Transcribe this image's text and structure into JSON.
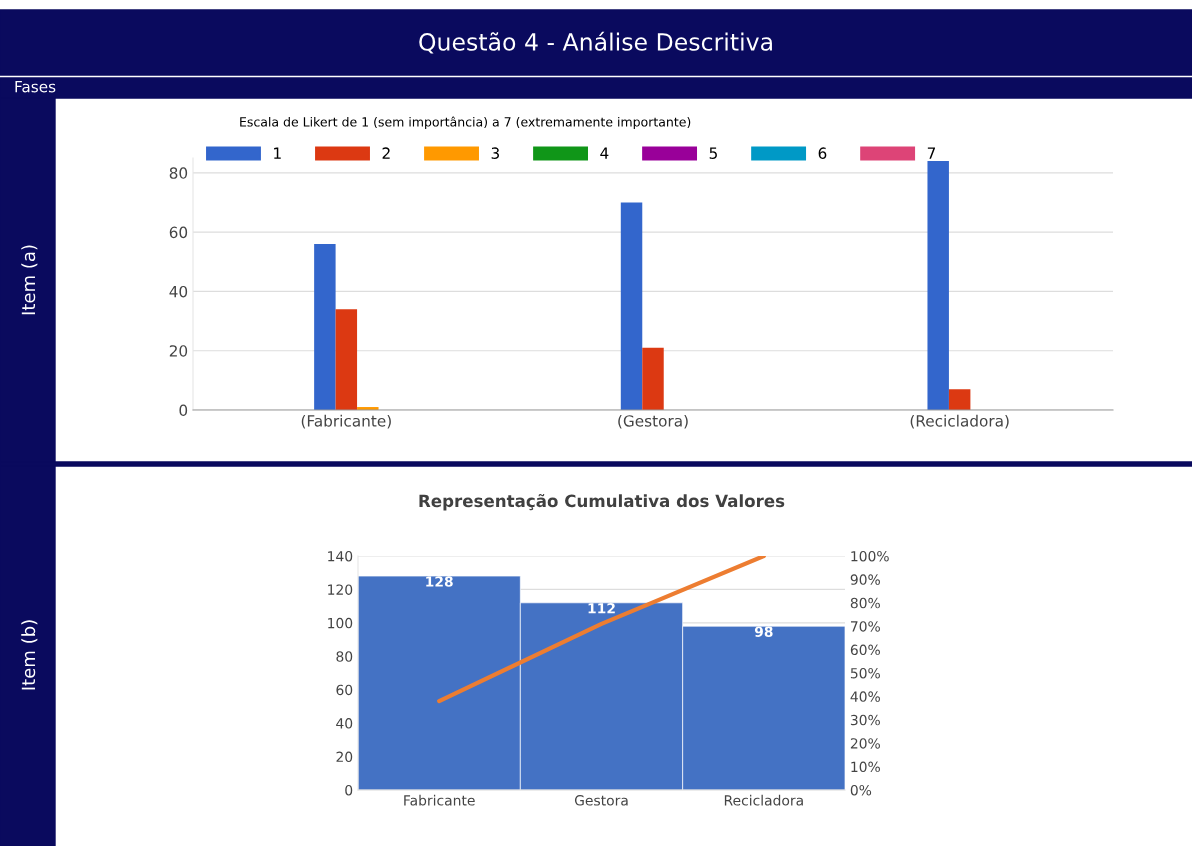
{
  "chart_data": [
    {
      "type": "bar",
      "subtitle": "Escala de Likert de 1 (sem importância) a 7 (extremamente importante)",
      "categories": [
        "(Fabricante)",
        "(Gestora)",
        "(Recicladora)"
      ],
      "series": [
        {
          "name": "1",
          "color": "#3366cc",
          "values": [
            56,
            70,
            84
          ]
        },
        {
          "name": "2",
          "color": "#dc3912",
          "values": [
            34,
            21,
            7
          ]
        },
        {
          "name": "3",
          "color": "#ff9900",
          "values": [
            1,
            0,
            0
          ]
        },
        {
          "name": "4",
          "color": "#109618",
          "values": [
            0,
            0,
            0
          ]
        },
        {
          "name": "5",
          "color": "#990099",
          "values": [
            0,
            0,
            0
          ]
        },
        {
          "name": "6",
          "color": "#0099c6",
          "values": [
            0,
            0,
            0
          ]
        },
        {
          "name": "7",
          "color": "#dd4477",
          "values": [
            0,
            0,
            0
          ]
        }
      ],
      "ylim": [
        0,
        85
      ],
      "yticks": [
        0,
        20,
        40,
        60,
        80
      ],
      "grid": "y",
      "legend": "top left",
      "annotations": [
        "Questão 4 - Análise Descritiva",
        "Fases",
        "Item (a)"
      ]
    },
    {
      "type": "bar",
      "title": "Representação Cumulativa dos Valores",
      "categories": [
        "Fabricante",
        "Gestora",
        "Recicladora"
      ],
      "series": [
        {
          "type": "bar",
          "color": "#4472c4",
          "values": [
            128,
            112,
            98
          ],
          "value_labels": [
            "128",
            "112",
            "98"
          ]
        },
        {
          "type": "line",
          "axis": "y2",
          "color": "#ed7d31",
          "values": [
            38,
            71,
            100
          ]
        }
      ],
      "ylim": [
        0,
        140
      ],
      "yticks": [
        0,
        20,
        40,
        60,
        80,
        100,
        120,
        140
      ],
      "y2lim": [
        0,
        100
      ],
      "y2ticks": [
        {
          "value": 0,
          "label": "0%"
        },
        {
          "value": 10,
          "label": "10%"
        },
        {
          "value": 20,
          "label": "20%"
        },
        {
          "value": 30,
          "label": "30%"
        },
        {
          "value": 40,
          "label": "40%"
        },
        {
          "value": 50,
          "label": "50%"
        },
        {
          "value": 60,
          "label": "60%"
        },
        {
          "value": 70,
          "label": "70%"
        },
        {
          "value": 80,
          "label": "80%"
        },
        {
          "value": 90,
          "label": "90%"
        },
        {
          "value": 100,
          "label": "100%"
        }
      ],
      "grid": "y",
      "legend": false,
      "annotations": [
        "Item (b)"
      ]
    }
  ]
}
